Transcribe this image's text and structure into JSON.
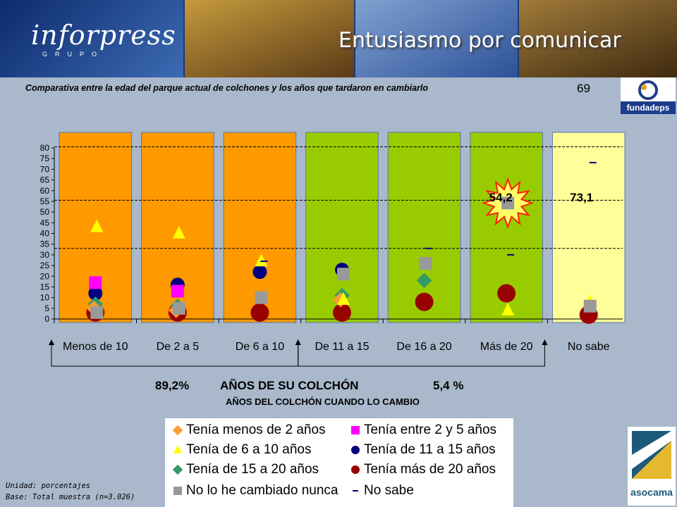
{
  "header": {
    "logo_text": "inforpress",
    "logo_subtext": "GRUPO",
    "title": "Entusiasmo por comunicar"
  },
  "subtitle": "Comparativa entre la edad del parque actual de colchones y los años que tardaron en cambiarlo",
  "page_number": "69",
  "logos": {
    "fundadeps": "fundadeps",
    "asocama": "asocama"
  },
  "annotations": {
    "range_left": "89,2%",
    "range_right": "5,4 %",
    "axis_title": "AÑOS DE SU COLCHÓN",
    "axis_subtitle": "AÑOS DEL COLCHÓN CUANDO LO CAMBIO"
  },
  "footnote": {
    "unit": "Unidad: porcentajes",
    "base": "Base: Total muestra (n=3.026)"
  },
  "chart_data": {
    "type": "scatter",
    "categories": [
      "Menos de 10",
      "De 2 a 5",
      "De 6 a 10",
      "De 11 a 15",
      "De 16 a 20",
      "Más de 20",
      "No sabe"
    ],
    "category_colors": [
      "#ff9900",
      "#ff9900",
      "#ff9900",
      "#99cc00",
      "#99cc00",
      "#99cc00",
      "#ffff99"
    ],
    "ylim": [
      0,
      80
    ],
    "yticks": [
      0,
      5,
      10,
      15,
      20,
      25,
      30,
      35,
      40,
      45,
      50,
      55,
      60,
      65,
      70,
      75,
      80
    ],
    "reference_lines": [
      33,
      55.5,
      80.5
    ],
    "value_labels": [
      {
        "category": "Más de 20",
        "text": "54,2"
      },
      {
        "category": "No sabe",
        "text": "73,1"
      }
    ],
    "series": [
      {
        "name": "Tenía menos de 2 años",
        "marker": "diamond",
        "color": "#ff9933",
        "values": [
          5,
          4,
          null,
          9,
          null,
          null,
          null
        ]
      },
      {
        "name": "Tenía entre 2 y 5 años",
        "marker": "square",
        "color": "#ff00ff",
        "values": [
          17,
          13,
          null,
          null,
          null,
          null,
          null
        ]
      },
      {
        "name": "Tenía de 6 a 10 años",
        "marker": "triangle",
        "color": "#ffff00",
        "values": [
          43,
          40,
          27,
          9,
          null,
          4,
          8
        ]
      },
      {
        "name": "Tenía de 11 a 15 años",
        "marker": "circle",
        "color": "#000080",
        "values": [
          12,
          16,
          22,
          23,
          null,
          null,
          null
        ]
      },
      {
        "name": "Tenía de 15 a 20 años",
        "marker": "diamond",
        "color": "#339966",
        "values": [
          7,
          6,
          null,
          11,
          18,
          null,
          null
        ]
      },
      {
        "name": "Tenía más de 20 años",
        "marker": "circle",
        "color": "#990000",
        "values": [
          3,
          3,
          3,
          3,
          8,
          12,
          2
        ]
      },
      {
        "name": "No lo he cambiado nunca",
        "marker": "square",
        "color": "#999999",
        "values": [
          3,
          5,
          10,
          21,
          26,
          54.2,
          6
        ]
      },
      {
        "name": "No sabe",
        "marker": "dash",
        "color": "#000080",
        "values": [
          null,
          null,
          27,
          null,
          33,
          30,
          73.1
        ]
      }
    ]
  }
}
